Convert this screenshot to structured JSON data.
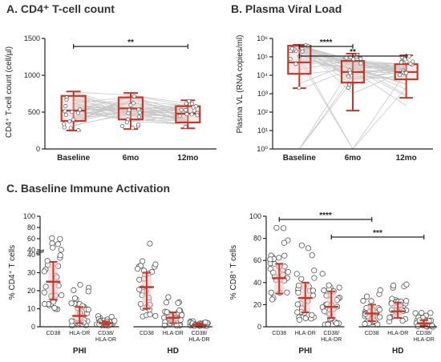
{
  "chart_data": [
    {
      "type": "box",
      "title": "A. CD4⁺ T-cell count",
      "ylabel": "CD4⁺ T-cell count (cell/µl)",
      "ylim": [
        0,
        1500
      ],
      "yticks": [
        "0",
        "500",
        "1000",
        "1500"
      ],
      "categories": [
        "Baseline",
        "6mo",
        "12mo"
      ],
      "boxes": [
        {
          "min": 250,
          "q1": 380,
          "median": 520,
          "q3": 720,
          "max": 780
        },
        {
          "min": 270,
          "q1": 400,
          "median": 550,
          "q3": 700,
          "max": 760
        },
        {
          "min": 280,
          "q1": 360,
          "median": 480,
          "q3": 580,
          "max": 660
        }
      ],
      "paired_lines": true,
      "annotations": [
        {
          "from": "Baseline",
          "to": "12mo",
          "label": "**"
        }
      ]
    },
    {
      "type": "box",
      "title": "B. Plasma Viral Load",
      "ylabel": "Plasma VL (RNA copies/ml)",
      "yscale": "log",
      "ylim": [
        1,
        1000000
      ],
      "yticks": [
        "10⁰",
        "10¹",
        "10²",
        "10³",
        "10⁴",
        "10⁵",
        "10⁶"
      ],
      "categories": [
        "Baseline",
        "6mo",
        "12mo"
      ],
      "boxes": [
        {
          "min": 2000,
          "q1": 12000,
          "median": 50000,
          "q3": 400000,
          "max": 450000
        },
        {
          "min": 120,
          "q1": 4000,
          "median": 15000,
          "q3": 60000,
          "max": 150000
        },
        {
          "min": 600,
          "q1": 6000,
          "median": 15000,
          "q3": 40000,
          "max": 120000
        }
      ],
      "paired_lines": true,
      "annotations": [
        {
          "from": "Baseline",
          "to": "6mo",
          "label": "****"
        },
        {
          "from": "Baseline",
          "to": "12mo",
          "label": "**"
        }
      ]
    },
    {
      "type": "scatter",
      "title": "C. Baseline Immune Activation",
      "ylabel": "% CD4⁺ T cells",
      "ylim": [
        0,
        100
      ],
      "axis_break": [
        40,
        40
      ],
      "yticks": [
        "0",
        "10",
        "20",
        "30",
        "40",
        "40",
        "60",
        "80",
        "100"
      ],
      "categories": [
        "CD38",
        "HLA-DR",
        "CD38/ HLA-DR",
        "CD38",
        "HLA-DR",
        "CD38/ HLA-DR"
      ],
      "groups": [
        "PHI",
        "HD"
      ],
      "summary": [
        {
          "median": 25,
          "low": 15,
          "high": 36
        },
        {
          "median": 6,
          "low": 2,
          "high": 11
        },
        {
          "median": 2,
          "low": 1,
          "high": 3
        },
        {
          "median": 22,
          "low": 10,
          "high": 30
        },
        {
          "median": 5,
          "low": 2,
          "high": 8
        },
        {
          "median": 1,
          "low": 0.5,
          "high": 2
        }
      ]
    },
    {
      "type": "scatter",
      "ylabel": "% CD8⁺ T cells",
      "ylim": [
        0,
        100
      ],
      "yticks": [
        "0",
        "20",
        "40",
        "60",
        "80",
        "100"
      ],
      "categories": [
        "CD38",
        "HLA-DR",
        "CD38/ HLA-DR",
        "CD38",
        "HLA-DR",
        "CD38/ HLA-DR"
      ],
      "groups": [
        "PHI",
        "HD"
      ],
      "summary": [
        {
          "median": 44,
          "low": 30,
          "high": 57
        },
        {
          "median": 26,
          "low": 13,
          "high": 40
        },
        {
          "median": 18,
          "low": 8,
          "high": 32
        },
        {
          "median": 12,
          "low": 5,
          "high": 20
        },
        {
          "median": 14,
          "low": 8,
          "high": 22
        },
        {
          "median": 3,
          "low": 1,
          "high": 6
        }
      ],
      "annotations": [
        {
          "from": 0,
          "to": 3,
          "label": "****"
        },
        {
          "from": 2,
          "to": 5,
          "label": "***"
        }
      ]
    }
  ],
  "style": {
    "box_color": "#c0392b",
    "fill_color": "#f4c6c6",
    "line_color": "#c8c8c8",
    "point_stroke": "#555555"
  }
}
